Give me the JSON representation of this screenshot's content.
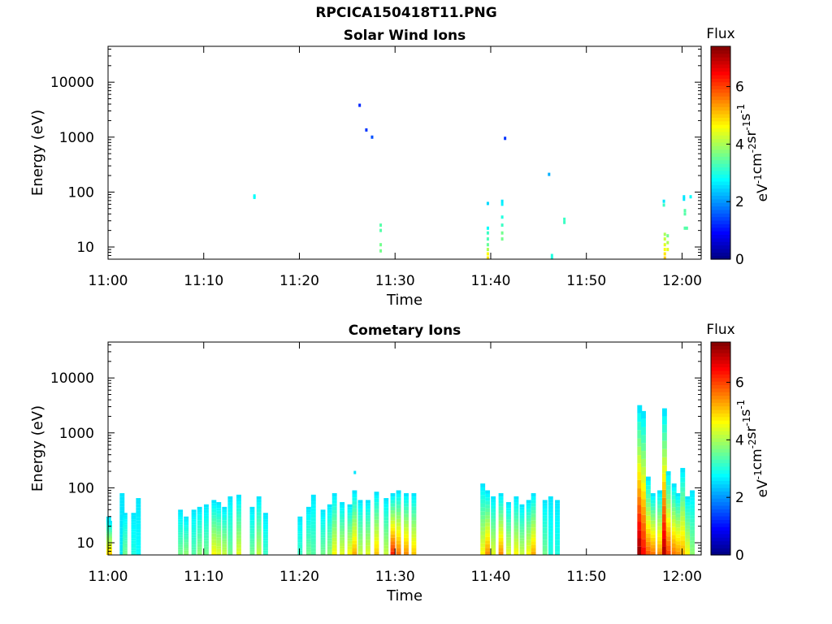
{
  "figure": {
    "filename": "RPCICA150418T11.PNG"
  },
  "chart_data": [
    {
      "type": "heatmap",
      "title": "Solar Wind Ions",
      "xlabel": "Time",
      "ylabel": "Energy (eV)",
      "x_range_minutes": [
        0,
        62
      ],
      "x_ticks": [
        {
          "minute": 0,
          "label": "11:00"
        },
        {
          "minute": 10,
          "label": "11:10"
        },
        {
          "minute": 20,
          "label": "11:20"
        },
        {
          "minute": 30,
          "label": "11:30"
        },
        {
          "minute": 40,
          "label": "11:40"
        },
        {
          "minute": 50,
          "label": "11:50"
        },
        {
          "minute": 60,
          "label": "12:00"
        }
      ],
      "y_scale": "log",
      "y_range": [
        6,
        45000
      ],
      "y_ticks": [
        {
          "value": 10,
          "label": "10"
        },
        {
          "value": 100,
          "label": "100"
        },
        {
          "value": 1000,
          "label": "1000"
        },
        {
          "value": 10000,
          "label": "10000"
        }
      ],
      "colorbar": {
        "label": "Flux",
        "unit_base": "eV",
        "unit_parts": [
          [
            "eV",
            "-1"
          ],
          [
            "cm",
            "-2"
          ],
          [
            "sr",
            "-1"
          ],
          [
            "s",
            "-1"
          ]
        ],
        "range": [
          0,
          7.4
        ],
        "ticks": [
          0,
          2,
          4,
          6
        ],
        "colormap": "jet"
      },
      "points": [
        [
          15.3,
          80,
          2.8
        ],
        [
          15.3,
          85,
          2.8
        ],
        [
          26.3,
          3800,
          1.2
        ],
        [
          27.0,
          1350,
          1.3
        ],
        [
          27.6,
          1000,
          1.5
        ],
        [
          28.5,
          25,
          3.4
        ],
        [
          28.5,
          20,
          3.4
        ],
        [
          28.5,
          11,
          3.6
        ],
        [
          28.5,
          8.5,
          3.6
        ],
        [
          39.7,
          62,
          2.5
        ],
        [
          39.7,
          22,
          2.8
        ],
        [
          39.7,
          18,
          3.2
        ],
        [
          39.7,
          14,
          3.3
        ],
        [
          39.7,
          11,
          3.5
        ],
        [
          39.7,
          9,
          4.0
        ],
        [
          39.7,
          7.5,
          4.6
        ],
        [
          39.7,
          6.3,
          4.8
        ],
        [
          41.2,
          68,
          2.6
        ],
        [
          41.2,
          60,
          2.7
        ],
        [
          41.2,
          35,
          3.0
        ],
        [
          41.2,
          25,
          3.2
        ],
        [
          41.2,
          18,
          3.6
        ],
        [
          41.2,
          14,
          3.6
        ],
        [
          41.5,
          950,
          1.3
        ],
        [
          46.1,
          210,
          2.2
        ],
        [
          46.4,
          7.0,
          3.0
        ],
        [
          46.4,
          6.3,
          3.0
        ],
        [
          47.7,
          32,
          3.2
        ],
        [
          47.7,
          28,
          3.2
        ],
        [
          58.1,
          68,
          2.6
        ],
        [
          58.1,
          58,
          3.2
        ],
        [
          58.2,
          17,
          4.0
        ],
        [
          58.2,
          14,
          4.2
        ],
        [
          58.2,
          11,
          4.4
        ],
        [
          58.2,
          9,
          4.6
        ],
        [
          58.2,
          7.5,
          4.8
        ],
        [
          58.2,
          6.3,
          5.0
        ],
        [
          58.5,
          16,
          3.6
        ],
        [
          58.5,
          12,
          4.0
        ],
        [
          58.5,
          9,
          4.4
        ],
        [
          60.2,
          82,
          2.6
        ],
        [
          60.2,
          74,
          2.6
        ],
        [
          60.3,
          46,
          3.4
        ],
        [
          60.3,
          40,
          3.4
        ],
        [
          60.3,
          22,
          3.4
        ],
        [
          60.5,
          22,
          3.4
        ],
        [
          60.9,
          82,
          2.8
        ]
      ]
    },
    {
      "type": "heatmap",
      "title": "Cometary Ions",
      "xlabel": "Time",
      "ylabel": "Energy (eV)",
      "x_range_minutes": [
        0,
        62
      ],
      "x_ticks": [
        {
          "minute": 0,
          "label": "11:00"
        },
        {
          "minute": 10,
          "label": "11:10"
        },
        {
          "minute": 20,
          "label": "11:20"
        },
        {
          "minute": 30,
          "label": "11:30"
        },
        {
          "minute": 40,
          "label": "11:40"
        },
        {
          "minute": 50,
          "label": "11:50"
        },
        {
          "minute": 60,
          "label": "12:00"
        }
      ],
      "y_scale": "log",
      "y_range": [
        6,
        45000
      ],
      "y_ticks": [
        {
          "value": 10,
          "label": "10"
        },
        {
          "value": 100,
          "label": "100"
        },
        {
          "value": 1000,
          "label": "1000"
        },
        {
          "value": 10000,
          "label": "10000"
        }
      ],
      "colorbar": {
        "label": "Flux",
        "unit_base": "eV",
        "unit_parts": [
          [
            "eV",
            "-1"
          ],
          [
            "cm",
            "-2"
          ],
          [
            "sr",
            "-1"
          ],
          [
            "s",
            "-1"
          ]
        ],
        "range": [
          0,
          7.4
        ],
        "ticks": [
          0,
          2,
          4,
          6
        ],
        "colormap": "jet"
      },
      "columns": [
        [
          0.1,
          30,
          4.8
        ],
        [
          0.2,
          25,
          5.0
        ],
        [
          1.5,
          80,
          2.6
        ],
        [
          1.8,
          35,
          3.6
        ],
        [
          2.7,
          35,
          3.0
        ],
        [
          3.2,
          65,
          2.8
        ],
        [
          7.6,
          40,
          3.6
        ],
        [
          8.2,
          30,
          3.8
        ],
        [
          9.0,
          40,
          3.4
        ],
        [
          9.6,
          45,
          3.8
        ],
        [
          10.3,
          50,
          3.6
        ],
        [
          11.1,
          60,
          4.6
        ],
        [
          11.6,
          55,
          4.4
        ],
        [
          12.2,
          45,
          4.2
        ],
        [
          12.8,
          70,
          3.6
        ],
        [
          13.7,
          75,
          4.4
        ],
        [
          15.1,
          45,
          3.6
        ],
        [
          15.8,
          70,
          4.2
        ],
        [
          16.5,
          35,
          3.2
        ],
        [
          20.1,
          30,
          3.2
        ],
        [
          21.0,
          45,
          3.6
        ],
        [
          21.5,
          75,
          3.4
        ],
        [
          22.5,
          40,
          3.6
        ],
        [
          23.2,
          50,
          3.8
        ],
        [
          23.7,
          80,
          4.6
        ],
        [
          24.5,
          55,
          4.4
        ],
        [
          25.3,
          50,
          4.6
        ],
        [
          25.8,
          90,
          5.2
        ],
        [
          26.4,
          60,
          4.2
        ],
        [
          27.2,
          60,
          4.4
        ],
        [
          28.1,
          85,
          5.0
        ],
        [
          29.1,
          65,
          4.2
        ],
        [
          29.8,
          80,
          6.2
        ],
        [
          30.4,
          90,
          5.6
        ],
        [
          31.2,
          80,
          5.4
        ],
        [
          32.0,
          80,
          5.0
        ],
        [
          39.2,
          120,
          4.6
        ],
        [
          39.7,
          90,
          5.4
        ],
        [
          40.3,
          70,
          4.4
        ],
        [
          41.1,
          80,
          5.4
        ],
        [
          41.9,
          55,
          4.4
        ],
        [
          42.7,
          70,
          4.6
        ],
        [
          43.3,
          50,
          4.2
        ],
        [
          44.0,
          60,
          4.6
        ],
        [
          44.5,
          80,
          5.2
        ],
        [
          45.7,
          60,
          3.6
        ],
        [
          46.3,
          70,
          3.0
        ],
        [
          47.0,
          60,
          3.0
        ],
        [
          55.6,
          3200,
          7.2
        ],
        [
          56.0,
          2500,
          6.4
        ],
        [
          56.5,
          160,
          5.8
        ],
        [
          57.0,
          80,
          5.6
        ],
        [
          57.7,
          90,
          5.4
        ],
        [
          58.2,
          2800,
          7.0
        ],
        [
          58.6,
          200,
          6.0
        ],
        [
          59.2,
          120,
          5.6
        ],
        [
          59.6,
          80,
          5.4
        ],
        [
          60.1,
          230,
          5.2
        ],
        [
          60.6,
          70,
          4.6
        ],
        [
          61.1,
          90,
          3.8
        ]
      ],
      "points": [
        [
          25.8,
          190,
          2.6
        ]
      ]
    }
  ]
}
